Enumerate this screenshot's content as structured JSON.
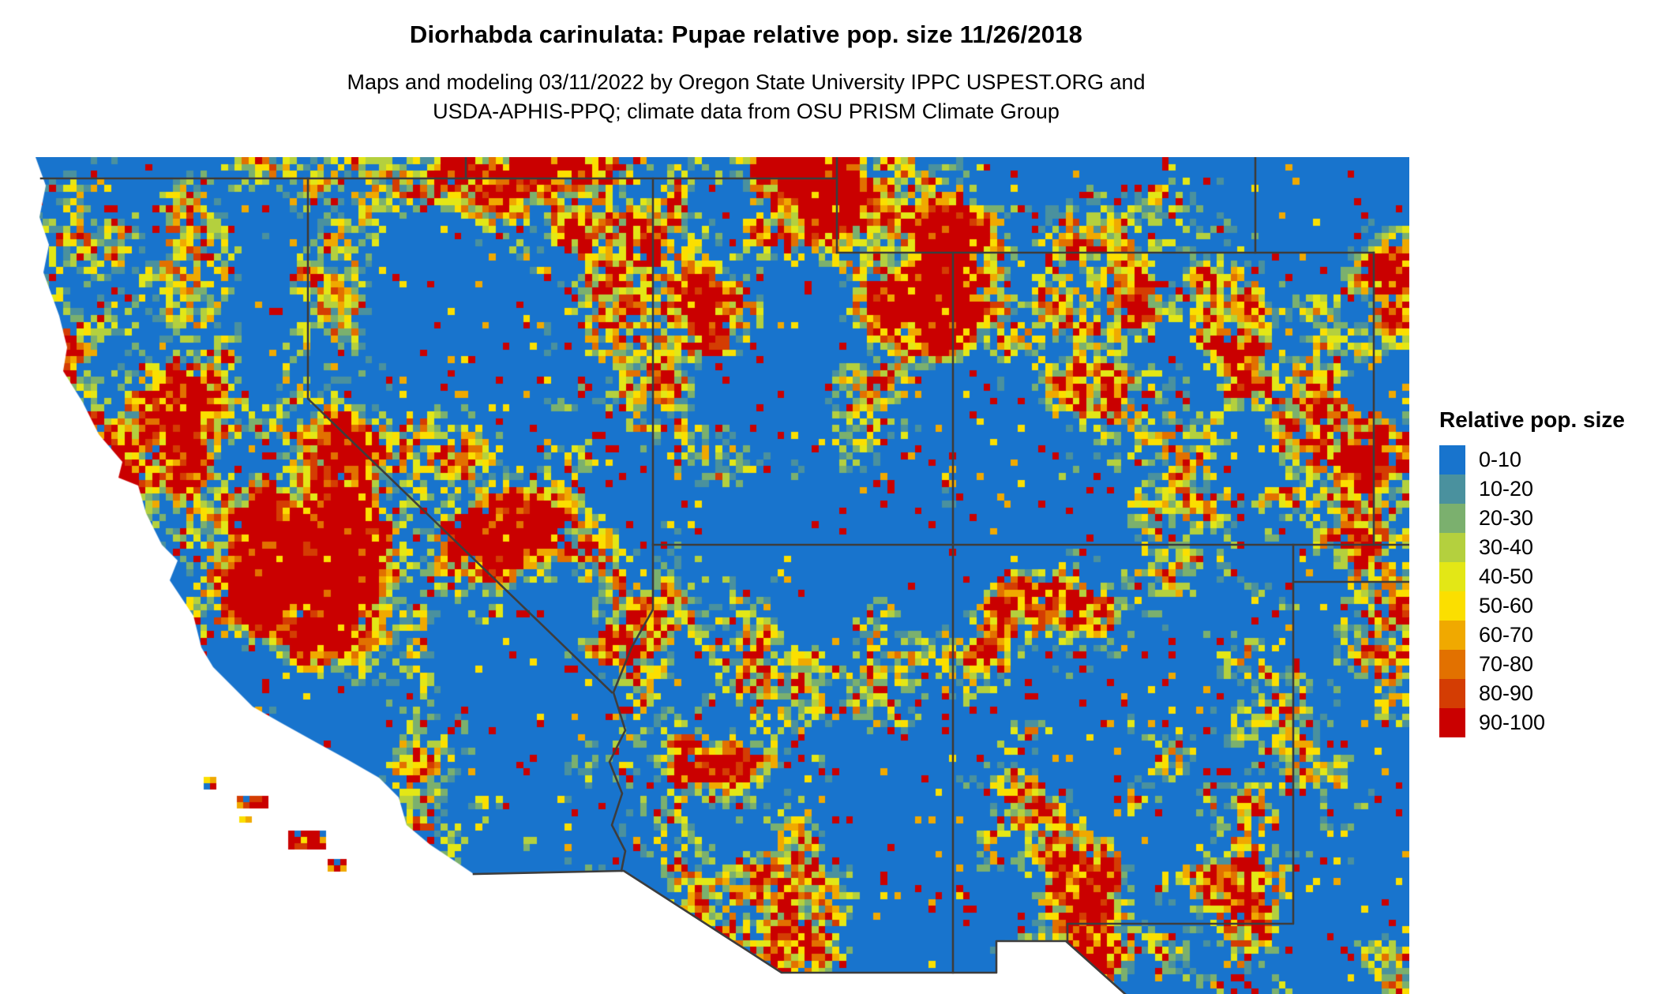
{
  "header": {
    "title": "Diorhabda carinulata: Pupae relative pop. size 11/26/2018",
    "subtitle_line1": "Maps and modeling 03/11/2022 by Oregon State University IPPC USPEST.ORG and",
    "subtitle_line2": "USDA-APHIS-PPQ; climate data from OSU PRISM Climate Group"
  },
  "legend": {
    "title": "Relative pop. size",
    "classes": [
      {
        "label": "0-10",
        "color": "#1874cd"
      },
      {
        "label": "10-20",
        "color": "#4a919e"
      },
      {
        "label": "20-30",
        "color": "#7bb06e"
      },
      {
        "label": "30-40",
        "color": "#b4d03e"
      },
      {
        "label": "40-50",
        "color": "#e3e716"
      },
      {
        "label": "50-60",
        "color": "#fbdf00"
      },
      {
        "label": "60-70",
        "color": "#f0a900"
      },
      {
        "label": "70-80",
        "color": "#e27100"
      },
      {
        "label": "80-90",
        "color": "#d43d03"
      },
      {
        "label": "90-100",
        "color": "#ca0000"
      }
    ]
  },
  "map": {
    "depicted_region": "Southwestern United States (CA, NV, UT, AZ, CO, NM with parts of OR, ID, WY, TX)",
    "type": "classed raster (10 population-size classes)",
    "dominant_class": "0-10",
    "border_color": "#3d3d3d",
    "ocean_color": "#ffffff"
  }
}
